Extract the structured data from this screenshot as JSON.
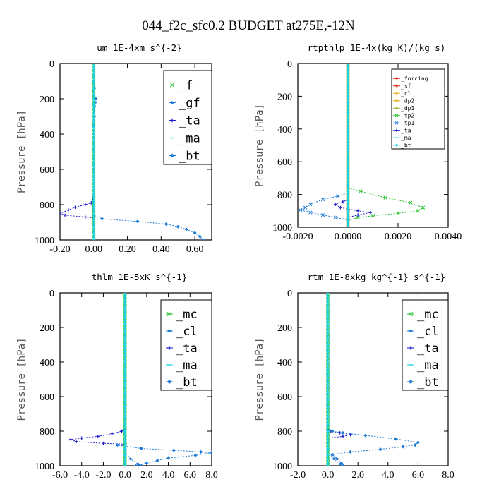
{
  "figure_title": "044_f2c_sfc0.2  BUDGET at275E,-12N",
  "colors": {
    "green": "#22c22b",
    "blue": "#1e7bd6",
    "navy": "#1a1acc",
    "cyan": "#18d2e6",
    "red": "#dd2211",
    "orange": "#e8b018",
    "olive": "#a3b23a",
    "axis": "#000000"
  },
  "chart_data": [
    {
      "type": "line",
      "title": "um  1E-4xm s^{-2}",
      "xlabel": "",
      "ylabel": "Pressure [hPa]",
      "xlim": [
        -0.2,
        0.7
      ],
      "ylim": [
        1000,
        0
      ],
      "xticks": [
        "-0.20",
        "0.00",
        "0.20",
        "0.40",
        "0.60"
      ],
      "xtick_values": [
        -0.2,
        0.0,
        0.2,
        0.4,
        0.6
      ],
      "yticks": [
        "0",
        "200",
        "400",
        "600",
        "800",
        "1000"
      ],
      "ytick_values": [
        0,
        200,
        400,
        600,
        800,
        1000
      ],
      "legend_position": "top-right",
      "legend_font": "large",
      "series": [
        {
          "name": "_f",
          "color": "#22c22b",
          "marker": "x",
          "points": [
            [
              0.0,
              0
            ],
            [
              0.0,
              1000
            ]
          ]
        },
        {
          "name": "_gf",
          "color": "#1e7bd6",
          "marker": "dot",
          "points": [
            [
              0.0,
              0
            ],
            [
              0.0,
              100
            ],
            [
              0.005,
              140
            ],
            [
              -0.005,
              160
            ],
            [
              0.015,
              200
            ],
            [
              0.01,
              220
            ],
            [
              0.005,
              240
            ],
            [
              0.005,
              300
            ],
            [
              0.0,
              350
            ],
            [
              0.0,
              700
            ],
            [
              -0.005,
              780
            ],
            [
              0.0,
              1000
            ]
          ]
        },
        {
          "name": "_ta",
          "color": "#1a1acc",
          "marker": "plus",
          "points": [
            [
              0.0,
              0
            ],
            [
              0.0,
              760
            ],
            [
              -0.015,
              790
            ],
            [
              -0.05,
              800
            ],
            [
              -0.11,
              815
            ],
            [
              -0.15,
              830
            ],
            [
              -0.2,
              850
            ],
            [
              -0.17,
              860
            ],
            [
              -0.05,
              870
            ],
            [
              0.0,
              875
            ],
            [
              0.0,
              1000
            ]
          ]
        },
        {
          "name": "_ma",
          "color": "#18d2e6",
          "marker": "dash",
          "points": [
            [
              0.0,
              0
            ],
            [
              0.0,
              1000
            ]
          ]
        },
        {
          "name": "_bt",
          "color": "#1e7bd6",
          "marker": "diamond",
          "points": [
            [
              0.0,
              0
            ],
            [
              0.0,
              860
            ],
            [
              0.05,
              880
            ],
            [
              0.26,
              895
            ],
            [
              0.43,
              910
            ],
            [
              0.5,
              925
            ],
            [
              0.55,
              940
            ],
            [
              0.6,
              960
            ],
            [
              0.63,
              980
            ],
            [
              0.65,
              1000
            ]
          ]
        }
      ]
    },
    {
      "type": "line",
      "title": "rtpthlp  1E-4x(kg K)/(kg s)",
      "xlabel": "",
      "ylabel": "Pressure [hPa]",
      "xlim": [
        -0.002,
        0.004
      ],
      "ylim": [
        1000,
        0
      ],
      "xticks": [
        "-0.0020",
        "0.0000",
        "0.0020",
        "0.0040"
      ],
      "xtick_values": [
        -0.002,
        0.0,
        0.002,
        0.004
      ],
      "yticks": [
        "0",
        "200",
        "400",
        "600",
        "800",
        "1000"
      ],
      "ytick_values": [
        0,
        200,
        400,
        600,
        800,
        1000
      ],
      "legend_position": "top-right",
      "legend_font": "small",
      "series": [
        {
          "name": "_forcing",
          "color": "#dd2211",
          "marker": "plus",
          "points": [
            [
              0.0,
              0
            ],
            [
              0.0,
              1000
            ]
          ]
        },
        {
          "name": "_sf",
          "color": "#dd2211",
          "marker": "plus",
          "points": [
            [
              0.0,
              0
            ],
            [
              0.0,
              1000
            ]
          ]
        },
        {
          "name": "_cl",
          "color": "#e8b018",
          "marker": "plus",
          "points": [
            [
              0.0,
              0
            ],
            [
              0.0,
              1000
            ]
          ]
        },
        {
          "name": "_dp2",
          "color": "#e8b018",
          "marker": "square",
          "points": [
            [
              0.0,
              0
            ],
            [
              0.0,
              1000
            ]
          ]
        },
        {
          "name": "_dp1",
          "color": "#a3b23a",
          "marker": "dot",
          "points": [
            [
              0.0,
              0
            ],
            [
              0.0,
              1000
            ]
          ]
        },
        {
          "name": "_tp2",
          "color": "#22c22b",
          "marker": "x",
          "points": [
            [
              0.0,
              0
            ],
            [
              0.0,
              760
            ],
            [
              0.0005,
              780
            ],
            [
              0.0015,
              820
            ],
            [
              0.0025,
              850
            ],
            [
              0.003,
              880
            ],
            [
              0.0028,
              900
            ],
            [
              0.002,
              915
            ],
            [
              0.001,
              930
            ],
            [
              0.0004,
              940
            ],
            [
              0.0,
              960
            ],
            [
              0.0,
              1000
            ]
          ]
        },
        {
          "name": "_tp1",
          "color": "#1e7bd6",
          "marker": "x",
          "points": [
            [
              0.0,
              0
            ],
            [
              0.0,
              790
            ],
            [
              -0.0004,
              810
            ],
            [
              -0.001,
              830
            ],
            [
              -0.0015,
              860
            ],
            [
              -0.0017,
              880
            ],
            [
              -0.0019,
              895
            ],
            [
              -0.0015,
              910
            ],
            [
              -0.001,
              925
            ],
            [
              -0.0005,
              940
            ],
            [
              0.0,
              955
            ],
            [
              0.0,
              1000
            ]
          ]
        },
        {
          "name": "_ta",
          "color": "#1a1acc",
          "marker": "plus",
          "points": [
            [
              0.0,
              0
            ],
            [
              0.0,
              830
            ],
            [
              -0.0002,
              845
            ],
            [
              -0.0005,
              860
            ],
            [
              -0.0003,
              880
            ],
            [
              0.0004,
              900
            ],
            [
              0.0009,
              910
            ],
            [
              0.0004,
              925
            ],
            [
              0.0,
              940
            ],
            [
              0.0,
              1000
            ]
          ]
        },
        {
          "name": "_ma",
          "color": "#18d2e6",
          "marker": "dash",
          "points": [
            [
              0.0,
              0
            ],
            [
              0.0,
              1000
            ]
          ]
        },
        {
          "name": "_bt",
          "color": "#18d2e6",
          "marker": "diamond",
          "points": [
            [
              0.0,
              0
            ],
            [
              0.0,
              1000
            ]
          ]
        }
      ]
    },
    {
      "type": "line",
      "title": "thlm  1E-5xK s^{-1}",
      "xlabel": "",
      "ylabel": "Pressure [hPa]",
      "xlim": [
        -6.0,
        8.0
      ],
      "ylim": [
        1000,
        0
      ],
      "xticks": [
        "-6.0",
        "-4.0",
        "-2.0",
        "0.0",
        "2.0",
        "4.0",
        "6.0",
        "8.0"
      ],
      "xtick_values": [
        -6,
        -4,
        -2,
        0,
        2,
        4,
        6,
        8
      ],
      "yticks": [
        "0",
        "200",
        "400",
        "600",
        "800",
        "1000"
      ],
      "ytick_values": [
        0,
        200,
        400,
        600,
        800,
        1000
      ],
      "legend_position": "top-right",
      "legend_font": "large",
      "series": [
        {
          "name": "_mc",
          "color": "#22c22b",
          "marker": "x",
          "points": [
            [
              0.0,
              0
            ],
            [
              0.0,
              1000
            ]
          ]
        },
        {
          "name": "_cl",
          "color": "#1e7bd6",
          "marker": "dot",
          "points": [
            [
              0.0,
              0
            ],
            [
              0.0,
              920
            ],
            [
              0.5,
              960
            ],
            [
              1.2,
              990
            ],
            [
              1.5,
              1000
            ]
          ]
        },
        {
          "name": "_ta",
          "color": "#1a1acc",
          "marker": "plus",
          "points": [
            [
              0.0,
              0
            ],
            [
              0.0,
              790
            ],
            [
              -0.3,
              800
            ],
            [
              -1.2,
              815
            ],
            [
              -2.5,
              830
            ],
            [
              -4.0,
              840
            ],
            [
              -5.0,
              848
            ],
            [
              -4.5,
              860
            ],
            [
              -2.0,
              870
            ],
            [
              0.0,
              875
            ],
            [
              0.0,
              1000
            ]
          ]
        },
        {
          "name": "_ma",
          "color": "#18d2e6",
          "marker": "dash",
          "points": [
            [
              0.0,
              0
            ],
            [
              0.0,
              1000
            ]
          ]
        },
        {
          "name": "_bt",
          "color": "#1e7bd6",
          "marker": "diamond",
          "points": [
            [
              0.0,
              0
            ],
            [
              0.0,
              880
            ],
            [
              -0.7,
              880
            ],
            [
              1.5,
              900
            ],
            [
              4.5,
              910
            ],
            [
              7.0,
              920
            ],
            [
              8.0,
              925
            ],
            [
              6.5,
              940
            ],
            [
              4.0,
              955
            ],
            [
              3.0,
              970
            ],
            [
              2.0,
              985
            ],
            [
              1.0,
              1000
            ]
          ]
        }
      ]
    },
    {
      "type": "line",
      "title": "rtm  1E-8xkg kg^{-1} s^{-1}",
      "xlabel": "",
      "ylabel": "Pressure [hPa]",
      "xlim": [
        -2.0,
        8.0
      ],
      "ylim": [
        1000,
        0
      ],
      "xticks": [
        "-2.0",
        "0.0",
        "2.0",
        "4.0",
        "6.0",
        "8.0"
      ],
      "xtick_values": [
        -2,
        0,
        2,
        4,
        6,
        8
      ],
      "yticks": [
        "0",
        "200",
        "400",
        "600",
        "800",
        "1000"
      ],
      "ytick_values": [
        0,
        200,
        400,
        600,
        800,
        1000
      ],
      "legend_position": "top-right",
      "legend_font": "large",
      "series": [
        {
          "name": "_mc",
          "color": "#22c22b",
          "marker": "x",
          "points": [
            [
              0.0,
              0
            ],
            [
              0.0,
              1000
            ]
          ]
        },
        {
          "name": "_cl",
          "color": "#1e7bd6",
          "marker": "dot",
          "points": [
            [
              0.0,
              0
            ],
            [
              0.0,
              920
            ],
            [
              0.4,
              960
            ],
            [
              0.8,
              990
            ],
            [
              1.0,
              1000
            ]
          ]
        },
        {
          "name": "_ta",
          "color": "#1a1acc",
          "marker": "plus",
          "points": [
            [
              0.0,
              0
            ],
            [
              0.0,
              790
            ],
            [
              0.2,
              800
            ],
            [
              0.8,
              810
            ],
            [
              1.5,
              820
            ],
            [
              1.0,
              830
            ],
            [
              0.0,
              840
            ],
            [
              0.0,
              1000
            ]
          ]
        },
        {
          "name": "_ma",
          "color": "#18d2e6",
          "marker": "dash",
          "points": [
            [
              0.0,
              0
            ],
            [
              0.0,
              1000
            ]
          ]
        },
        {
          "name": "_bt",
          "color": "#1e7bd6",
          "marker": "diamond",
          "points": [
            [
              0.0,
              0
            ],
            [
              0.0,
              790
            ],
            [
              0.3,
              800
            ],
            [
              1.0,
              810
            ],
            [
              2.5,
              825
            ],
            [
              4.5,
              845
            ],
            [
              6.0,
              865
            ],
            [
              5.8,
              880
            ],
            [
              5.0,
              890
            ],
            [
              3.5,
              905
            ],
            [
              1.5,
              920
            ],
            [
              0.3,
              935
            ],
            [
              0.6,
              960
            ],
            [
              0.9,
              985
            ],
            [
              1.0,
              1000
            ]
          ]
        }
      ]
    }
  ]
}
